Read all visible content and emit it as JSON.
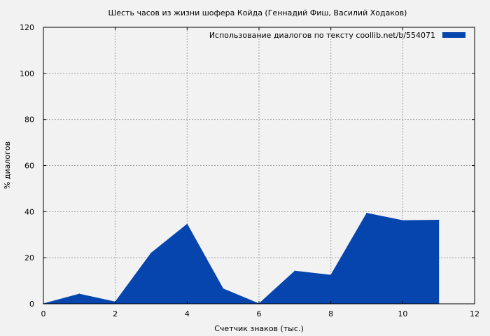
{
  "chart_data": {
    "type": "area",
    "title": "Шесть часов из жизни шофера Койда (Геннадий Фиш, Василий Ходаков)",
    "xlabel": "Счетчик знаков (тыс.)",
    "ylabel": "% диалогов",
    "xlim": [
      0,
      12
    ],
    "ylim": [
      0,
      120
    ],
    "xticks": [
      0,
      2,
      4,
      6,
      8,
      10,
      12
    ],
    "yticks": [
      0,
      20,
      40,
      60,
      80,
      100,
      120
    ],
    "grid": true,
    "legend_position": "top-right",
    "series": [
      {
        "name": "Использование диалогов по тексту  coollib.net/b/554071",
        "color": "#0645ad",
        "x": [
          0,
          1,
          2,
          3,
          4,
          5,
          6,
          7,
          8,
          9,
          10,
          11
        ],
        "y": [
          0,
          4.2,
          0.8,
          22.0,
          34.5,
          6.5,
          0,
          14.2,
          12.4,
          39.3,
          36.1,
          36.3
        ]
      }
    ]
  }
}
